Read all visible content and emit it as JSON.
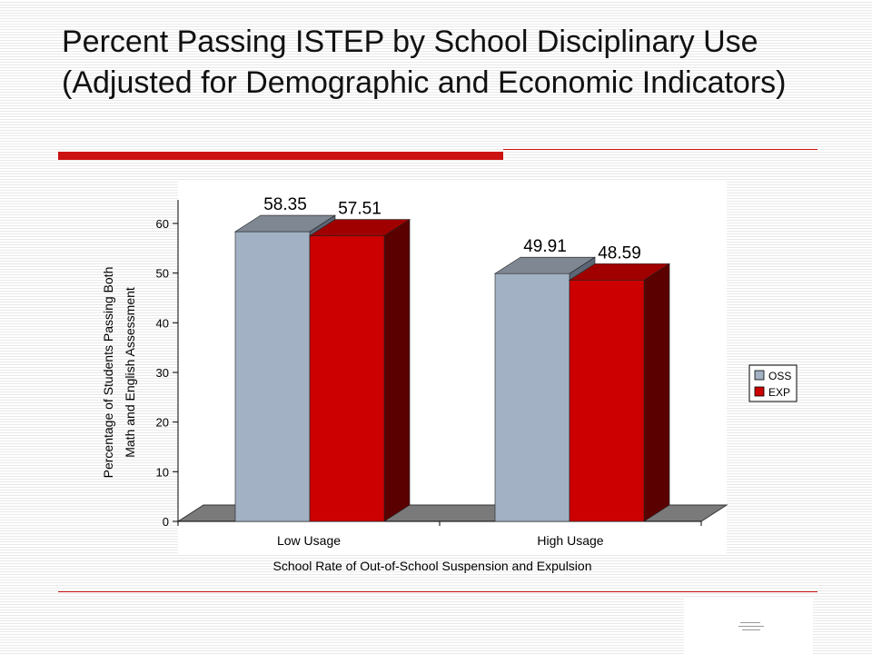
{
  "slide": {
    "title": "Percent Passing ISTEP by School Disciplinary Use (Adjusted for Demographic and Economic Indicators)"
  },
  "colors": {
    "accent_red": "#cc1111",
    "oss_front": "#a2b1c3",
    "oss_top": "#7f8793",
    "oss_side": "#5c6675",
    "exp_front": "#cc0000",
    "exp_top": "#a00000",
    "exp_side": "#5a0000",
    "floor": "#7a7a7a"
  },
  "chart_data": {
    "type": "bar",
    "title": "",
    "categories": [
      "Low Usage",
      "High Usage"
    ],
    "series": [
      {
        "name": "OSS",
        "values": [
          58.35,
          49.91
        ]
      },
      {
        "name": "EXP",
        "values": [
          57.51,
          48.59
        ]
      }
    ],
    "data_labels": [
      [
        "58.35",
        "49.91"
      ],
      [
        "57.51",
        "48.59"
      ]
    ],
    "xlabel": "School Rate of Out-of-School Suspension and Expulsion",
    "ylabel": [
      "Percentage of Students Passing Both",
      "Math and English Assessment"
    ],
    "ylim": [
      0,
      60
    ],
    "yticks": [
      0,
      10,
      20,
      30,
      40,
      50,
      60
    ],
    "grid": false,
    "legend_position": "right",
    "style": "3d-clustered-bar"
  }
}
